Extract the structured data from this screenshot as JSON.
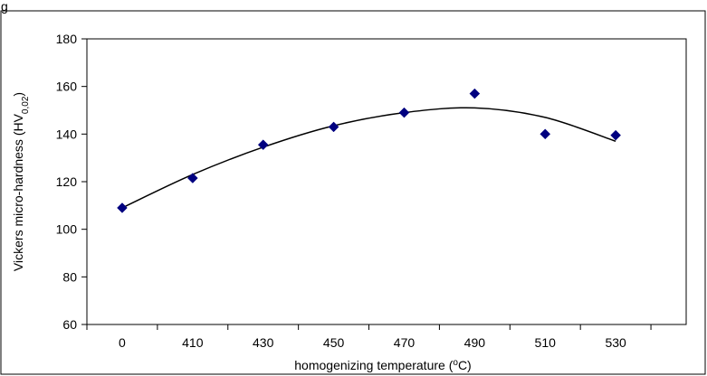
{
  "colors": {
    "marker": "#000080",
    "curve": "#000000",
    "frame": "#000000",
    "background": "#ffffff"
  },
  "top_fragment_text": "g",
  "chart_data": {
    "type": "scatter",
    "title": "",
    "xlabel": "homogenizing temperature (",
    "xlabel_unit_sup": "o",
    "xlabel_unit_tail": "C)",
    "ylabel": "Vickers micro-hardness  (HV",
    "ylabel_sub": "0,02",
    "ylabel_tail": ")",
    "categories": [
      "0",
      "410",
      "430",
      "450",
      "470",
      "490",
      "510",
      "530"
    ],
    "values": [
      109,
      121.5,
      135.5,
      143,
      149,
      157,
      140,
      139.5
    ],
    "ylim": [
      60,
      180
    ],
    "yticks": [
      60,
      80,
      100,
      120,
      140,
      160,
      180
    ],
    "trendline": {
      "type": "polynomial-fit",
      "values": [
        109,
        123,
        134.5,
        143.5,
        149,
        151,
        147,
        137
      ]
    },
    "marker": "diamond",
    "grid": false,
    "legend": "none"
  }
}
